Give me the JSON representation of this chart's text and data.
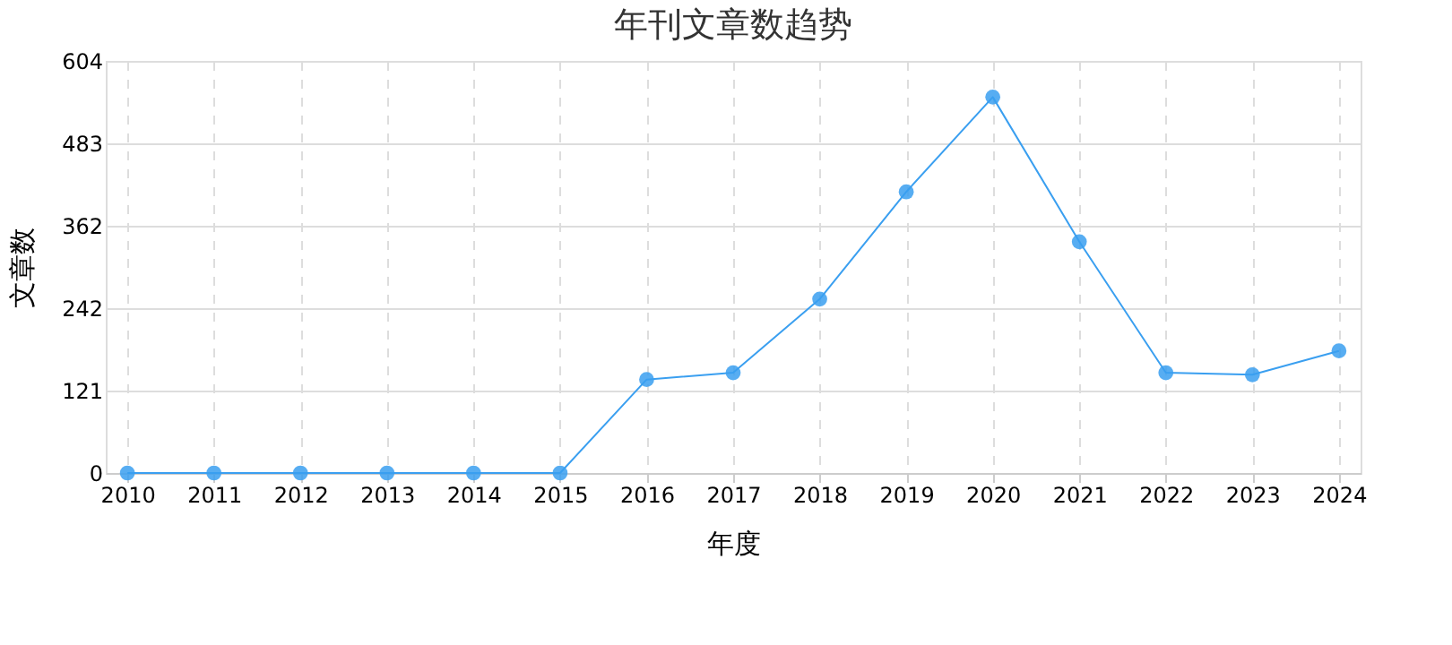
{
  "chart_data": {
    "type": "line",
    "title": "年刊文章数趋势",
    "xlabel": "年度",
    "ylabel": "文章数",
    "categories": [
      "2010",
      "2011",
      "2012",
      "2013",
      "2014",
      "2015",
      "2016",
      "2017",
      "2018",
      "2019",
      "2020",
      "2021",
      "2022",
      "2023",
      "2024"
    ],
    "series": [
      {
        "color": "#3a9ff0",
        "values": [
          0,
          0,
          0,
          0,
          0,
          0,
          137,
          147,
          255,
          412,
          551,
          339,
          147,
          144,
          179
        ]
      }
    ],
    "ylim": [
      0,
      604
    ],
    "yticks": [
      0,
      121,
      242,
      362,
      483,
      604
    ],
    "grid": true,
    "marker": "circle",
    "line_style": "solid"
  }
}
